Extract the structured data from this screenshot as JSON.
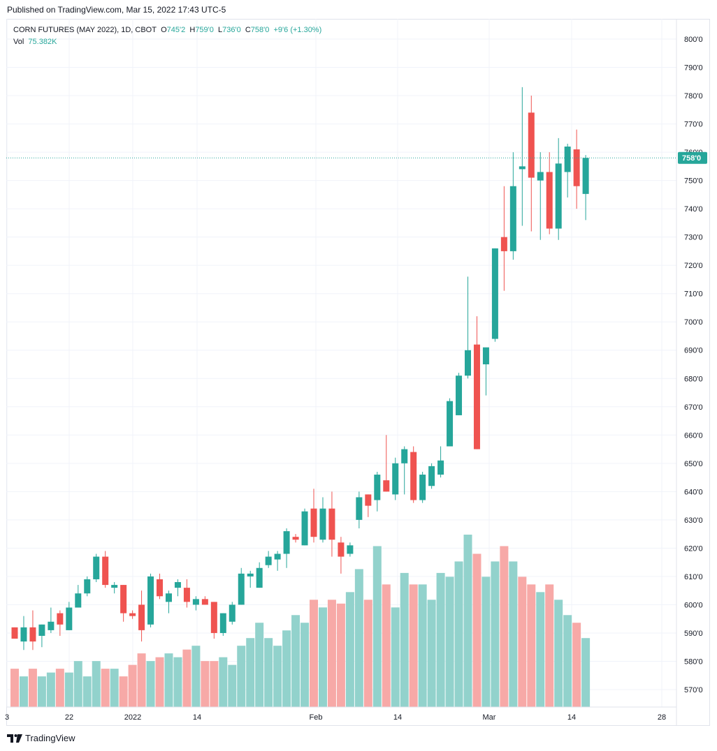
{
  "header": {
    "published": "Published on TradingView.com, Mar 15, 2022 17:43 UTC-5"
  },
  "legend": {
    "symbol": "CORN FUTURES (MAY 2022), 1D, CBOT",
    "o_label": "O",
    "o_value": "745'2",
    "h_label": "H",
    "h_value": "759'0",
    "l_label": "L",
    "l_value": "736'0",
    "c_label": "C",
    "c_value": "758'0",
    "change": "+9'6 (+1.30%)",
    "vol_label": "Vol",
    "vol_value": "75.382K"
  },
  "footer": {
    "brand": "TradingView"
  },
  "colors": {
    "up": "#26a69a",
    "down": "#ef5350",
    "up_vol": "#92d2cc",
    "down_vol": "#f7a9a7"
  },
  "chart_data": {
    "type": "candlestick",
    "title": "CORN FUTURES (MAY 2022), 1D, CBOT",
    "ylim": [
      564,
      804
    ],
    "y_ticks": [
      "800'0",
      "790'0",
      "780'0",
      "770'0",
      "760'0",
      "750'0",
      "740'0",
      "730'0",
      "720'0",
      "710'0",
      "700'0",
      "690'0",
      "680'0",
      "670'0",
      "660'0",
      "650'0",
      "640'0",
      "630'0",
      "620'0",
      "610'0",
      "600'0",
      "590'0",
      "580'0",
      "570'0"
    ],
    "x_ticks": [
      "3",
      "22",
      "2022",
      "14",
      "Feb",
      "14",
      "Mar",
      "14",
      "28"
    ],
    "last_price_label": "758'0",
    "last_price": 758,
    "grid": true,
    "legend_position": "top-left",
    "candles": [
      {
        "o": 592,
        "h": 592,
        "l": 588,
        "c": 588
      },
      {
        "o": 587,
        "h": 596,
        "l": 584,
        "c": 592
      },
      {
        "o": 592,
        "h": 598,
        "l": 584,
        "c": 587
      },
      {
        "o": 589,
        "h": 593,
        "l": 585,
        "c": 593
      },
      {
        "o": 591,
        "h": 599,
        "l": 590,
        "c": 594
      },
      {
        "o": 597,
        "h": 598,
        "l": 589,
        "c": 593
      },
      {
        "o": 591,
        "h": 601,
        "l": 591,
        "c": 599
      },
      {
        "o": 599,
        "h": 607,
        "l": 599,
        "c": 604
      },
      {
        "o": 604,
        "h": 610,
        "l": 603,
        "c": 609
      },
      {
        "o": 609,
        "h": 618,
        "l": 608,
        "c": 617
      },
      {
        "o": 617,
        "h": 619,
        "l": 606,
        "c": 607
      },
      {
        "o": 606,
        "h": 608,
        "l": 604,
        "c": 607
      },
      {
        "o": 607,
        "h": 607,
        "l": 594,
        "c": 597
      },
      {
        "o": 597,
        "h": 598,
        "l": 595,
        "c": 596
      },
      {
        "o": 600,
        "h": 605,
        "l": 587,
        "c": 591
      },
      {
        "o": 593,
        "h": 611,
        "l": 592,
        "c": 610
      },
      {
        "o": 609,
        "h": 611,
        "l": 602,
        "c": 603
      },
      {
        "o": 601,
        "h": 605,
        "l": 597,
        "c": 604
      },
      {
        "o": 606,
        "h": 609,
        "l": 603,
        "c": 608
      },
      {
        "o": 606,
        "h": 609,
        "l": 599,
        "c": 601
      },
      {
        "o": 600,
        "h": 603,
        "l": 598,
        "c": 602
      },
      {
        "o": 602,
        "h": 603,
        "l": 600,
        "c": 600
      },
      {
        "o": 601,
        "h": 601,
        "l": 588,
        "c": 590
      },
      {
        "o": 590,
        "h": 597,
        "l": 589,
        "c": 597
      },
      {
        "o": 594,
        "h": 601,
        "l": 593,
        "c": 600
      },
      {
        "o": 600,
        "h": 613,
        "l": 600,
        "c": 611
      },
      {
        "o": 610,
        "h": 612,
        "l": 606,
        "c": 611
      },
      {
        "o": 606,
        "h": 615,
        "l": 606,
        "c": 613
      },
      {
        "o": 614,
        "h": 619,
        "l": 613,
        "c": 617
      },
      {
        "o": 616,
        "h": 619,
        "l": 612,
        "c": 618
      },
      {
        "o": 618,
        "h": 627,
        "l": 613,
        "c": 626
      },
      {
        "o": 624,
        "h": 625,
        "l": 622,
        "c": 623
      },
      {
        "o": 621,
        "h": 634,
        "l": 621,
        "c": 633
      },
      {
        "o": 634,
        "h": 641,
        "l": 622,
        "c": 624
      },
      {
        "o": 623,
        "h": 638,
        "l": 622,
        "c": 634
      },
      {
        "o": 634,
        "h": 640,
        "l": 617,
        "c": 623
      },
      {
        "o": 622,
        "h": 624,
        "l": 611,
        "c": 617
      },
      {
        "o": 618,
        "h": 622,
        "l": 617,
        "c": 621
      },
      {
        "o": 630,
        "h": 640,
        "l": 627,
        "c": 638
      },
      {
        "o": 639,
        "h": 639,
        "l": 631,
        "c": 635
      },
      {
        "o": 637,
        "h": 647,
        "l": 633,
        "c": 646
      },
      {
        "o": 644,
        "h": 660,
        "l": 640,
        "c": 640
      },
      {
        "o": 639,
        "h": 652,
        "l": 637,
        "c": 650
      },
      {
        "o": 650,
        "h": 656,
        "l": 639,
        "c": 655
      },
      {
        "o": 654,
        "h": 656,
        "l": 636,
        "c": 637
      },
      {
        "o": 637,
        "h": 647,
        "l": 636,
        "c": 646
      },
      {
        "o": 642,
        "h": 650,
        "l": 641,
        "c": 649
      },
      {
        "o": 646,
        "h": 656,
        "l": 645,
        "c": 651
      },
      {
        "o": 656,
        "h": 673,
        "l": 656,
        "c": 672
      },
      {
        "o": 667,
        "h": 682,
        "l": 667,
        "c": 681
      },
      {
        "o": 681,
        "h": 716,
        "l": 680,
        "c": 690
      },
      {
        "o": 692,
        "h": 702,
        "l": 655,
        "c": 655
      },
      {
        "o": 685,
        "h": 690,
        "l": 674,
        "c": 691
      },
      {
        "o": 694,
        "h": 726,
        "l": 693,
        "c": 726
      },
      {
        "o": 730,
        "h": 748,
        "l": 711,
        "c": 725
      },
      {
        "o": 725,
        "h": 760,
        "l": 722,
        "c": 748
      },
      {
        "o": 754,
        "h": 783,
        "l": 734,
        "c": 755
      },
      {
        "o": 774,
        "h": 780,
        "l": 732,
        "c": 751
      },
      {
        "o": 750,
        "h": 760,
        "l": 729,
        "c": 753
      },
      {
        "o": 753,
        "h": 760,
        "l": 731,
        "c": 733
      },
      {
        "o": 733,
        "h": 765,
        "l": 729,
        "c": 756
      },
      {
        "o": 753,
        "h": 763,
        "l": 744,
        "c": 762
      },
      {
        "o": 761,
        "h": 768,
        "l": 740,
        "c": 748
      },
      {
        "o": 745.25,
        "h": 759,
        "l": 736,
        "c": 758
      }
    ],
    "volumes": [
      10,
      8,
      10,
      8,
      9,
      10,
      9,
      12,
      8,
      12,
      10,
      10,
      8,
      11,
      14,
      12,
      13,
      14,
      13,
      15,
      16,
      12,
      12,
      13,
      11,
      16,
      18,
      22,
      18,
      16,
      20,
      24,
      22,
      28,
      26,
      28,
      27,
      30,
      36,
      28,
      42,
      32,
      26,
      35,
      32,
      32,
      28,
      35,
      34,
      38,
      45,
      40,
      34,
      38,
      42,
      38,
      34,
      32,
      30,
      32,
      28,
      24,
      22,
      18
    ],
    "volume_up": [
      false,
      true,
      false,
      true,
      true,
      false,
      true,
      true,
      true,
      true,
      false,
      true,
      false,
      false,
      false,
      true,
      false,
      true,
      true,
      false,
      true,
      false,
      false,
      true,
      true,
      true,
      true,
      true,
      true,
      true,
      true,
      true,
      true,
      false,
      true,
      false,
      false,
      true,
      true,
      false,
      true,
      false,
      true,
      true,
      false,
      true,
      true,
      true,
      true,
      true,
      true,
      false,
      true,
      true,
      false,
      true,
      false,
      false,
      true,
      false,
      true,
      true,
      false,
      true
    ]
  }
}
